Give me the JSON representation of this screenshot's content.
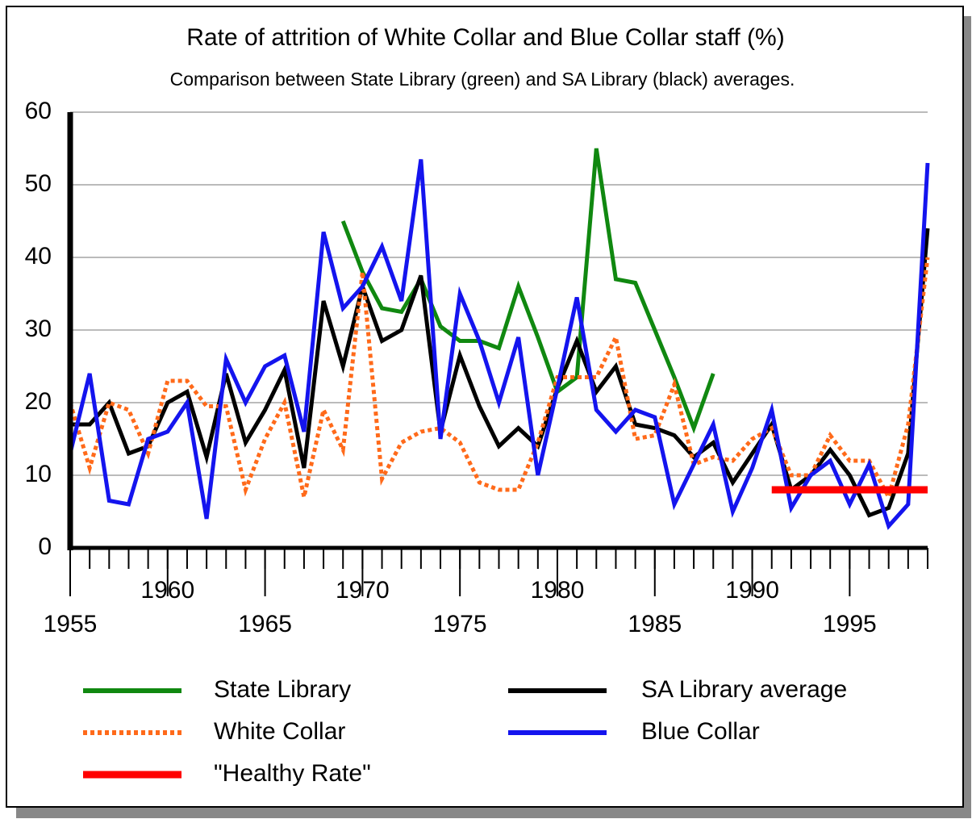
{
  "chart_data": {
    "type": "line",
    "title": "Rate of attrition of White Collar and Blue Collar staff (%)",
    "subtitle": "Comparison between State Library (green) and SA Library (black) averages.",
    "x": [
      1955,
      1956,
      1957,
      1958,
      1959,
      1960,
      1961,
      1962,
      1963,
      1964,
      1965,
      1966,
      1967,
      1968,
      1969,
      1970,
      1971,
      1972,
      1973,
      1974,
      1975,
      1976,
      1977,
      1978,
      1979,
      1980,
      1981,
      1982,
      1983,
      1984,
      1985,
      1986,
      1987,
      1988,
      1989,
      1990,
      1991,
      1992,
      1993,
      1994,
      1995,
      1996,
      1997,
      1998,
      1999
    ],
    "xlim": [
      1955,
      1999
    ],
    "xticks": [
      1955,
      1960,
      1965,
      1970,
      1975,
      1980,
      1985,
      1990,
      1995
    ],
    "ylim": [
      0,
      60
    ],
    "yticks": [
      0,
      10,
      20,
      30,
      40,
      50,
      60
    ],
    "grid": true,
    "series": [
      {
        "name": "State Library",
        "color": "#108810",
        "dotted": false,
        "values": [
          null,
          null,
          null,
          null,
          null,
          null,
          null,
          null,
          null,
          null,
          null,
          null,
          null,
          null,
          45,
          38,
          33,
          32.5,
          37,
          30.5,
          28.5,
          28.5,
          27.5,
          36,
          29,
          21.5,
          23.5,
          55,
          37,
          36.5,
          30,
          23.5,
          16.5,
          24,
          null,
          null,
          null,
          null,
          null,
          null,
          null,
          null,
          null,
          null,
          null
        ]
      },
      {
        "name": "SA Library average",
        "color": "#000000",
        "dotted": false,
        "values": [
          17,
          17,
          20,
          13,
          14,
          20,
          21.5,
          12.5,
          24,
          14.5,
          19,
          24.5,
          11,
          34,
          25,
          36,
          28.5,
          30,
          37.5,
          16,
          26.5,
          19.5,
          14,
          16.5,
          14,
          22,
          28.5,
          21.5,
          25,
          17,
          16.5,
          15.5,
          12.5,
          14.5,
          9,
          13,
          17,
          8,
          10,
          13.5,
          10,
          4.5,
          5.5,
          13,
          44
        ]
      },
      {
        "name": "White Collar",
        "color": "#ff6a1a",
        "dotted": true,
        "values": [
          20,
          11,
          20,
          19,
          13,
          23,
          23,
          19.5,
          19.5,
          8,
          15,
          20,
          7,
          19,
          13.5,
          38,
          9.5,
          14.5,
          16,
          16.5,
          14.5,
          9,
          8,
          8,
          14.5,
          23.5,
          23.5,
          23.5,
          29,
          15,
          15.5,
          22.5,
          11.5,
          12.5,
          12,
          15,
          16.5,
          10,
          10,
          15.5,
          12,
          12,
          7,
          17,
          40
        ]
      },
      {
        "name": "Blue Collar",
        "color": "#1414ee",
        "dotted": false,
        "values": [
          13,
          24,
          6.5,
          6,
          15,
          16,
          20,
          4,
          26,
          20,
          25,
          26.5,
          16,
          43.5,
          33,
          36,
          41.5,
          34,
          53.5,
          15,
          35,
          28.5,
          20,
          29,
          10,
          22,
          34.5,
          19,
          16,
          19,
          18,
          6,
          11.5,
          17,
          5,
          11,
          19,
          5.5,
          10,
          12,
          6,
          11.5,
          3,
          6,
          53
        ]
      },
      {
        "name": "\"Healthy Rate\"",
        "color": "#ff0000",
        "dotted": false,
        "values": [
          null,
          null,
          null,
          null,
          null,
          null,
          null,
          null,
          null,
          null,
          null,
          null,
          null,
          null,
          null,
          null,
          null,
          null,
          null,
          null,
          null,
          null,
          null,
          null,
          null,
          null,
          null,
          null,
          null,
          null,
          null,
          null,
          null,
          null,
          null,
          null,
          8,
          8,
          8,
          8,
          8,
          8,
          8,
          8,
          8
        ]
      }
    ]
  }
}
